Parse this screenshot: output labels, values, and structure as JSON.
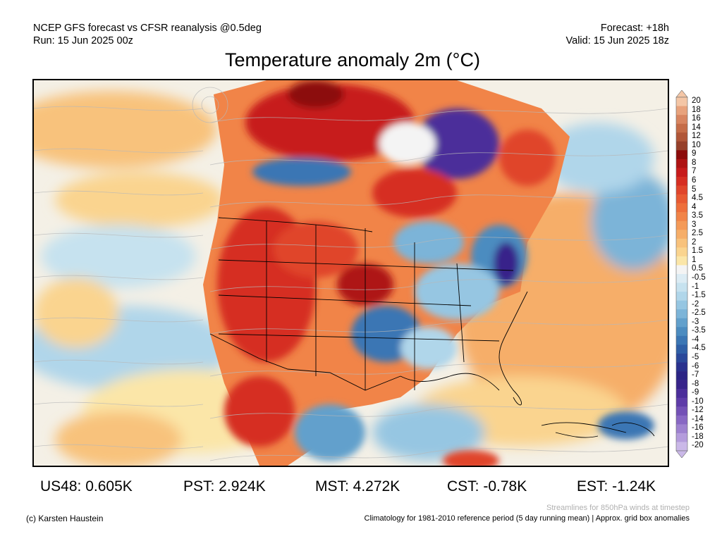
{
  "header": {
    "model_line": "NCEP GFS forecast vs CFSR reanalysis @0.5deg",
    "run_line": "Run: 15 Jun 2025 00z",
    "forecast_line": "Forecast: +18h",
    "valid_line": "Valid: 15 Jun 2025 18z"
  },
  "title": "Temperature anomaly 2m (°C)",
  "colorbar": {
    "labels": [
      "20",
      "18",
      "16",
      "14",
      "12",
      "10",
      "9",
      "8",
      "7",
      "6",
      "5",
      "4.5",
      "4",
      "3.5",
      "3",
      "2.5",
      "2",
      "1.5",
      "1",
      "0.5",
      "-0.5",
      "-1",
      "-1.5",
      "-2",
      "-2.5",
      "-3",
      "-3.5",
      "-4",
      "-4.5",
      "-5",
      "-6",
      "-7",
      "-8",
      "-9",
      "-10",
      "-12",
      "-14",
      "-16",
      "-18",
      "-20"
    ],
    "colors": [
      "#f4c6a6",
      "#e8a27c",
      "#d88560",
      "#c56c48",
      "#b05638",
      "#96402a",
      "#8c0b0b",
      "#ae1313",
      "#c71b1b",
      "#d62e22",
      "#e0452b",
      "#e85a32",
      "#ee6f3b",
      "#f18448",
      "#f49a58",
      "#f6ae69",
      "#f8c27c",
      "#fad48f",
      "#fbe6a8",
      "#f4f4f4",
      "#dcecf4",
      "#c6e2ef",
      "#b0d6ea",
      "#96c6e2",
      "#7cb4d8",
      "#62a0cc",
      "#4c8cc0",
      "#3b76b4",
      "#2f5fa6",
      "#2a489a",
      "#29318e",
      "#2b2485",
      "#38248a",
      "#4b2e9a",
      "#5e3ca8",
      "#7351b6",
      "#8868c4",
      "#9e82d0",
      "#b49cdc",
      "#cab8e8"
    ]
  },
  "stats": [
    {
      "label": "US48: 0.605K"
    },
    {
      "label": "PST: 2.924K"
    },
    {
      "label": "MST: 4.272K"
    },
    {
      "label": "CST: -0.78K"
    },
    {
      "label": "EST: -1.24K"
    }
  ],
  "footer": {
    "streamline_note": "Streamlines for 850hPa winds at timestep",
    "copyright": "(c) Karsten Haustein",
    "climatology_note": "Climatology for 1981-2010 reference period (5 day running mean) | Approx. grid box anomalies"
  }
}
